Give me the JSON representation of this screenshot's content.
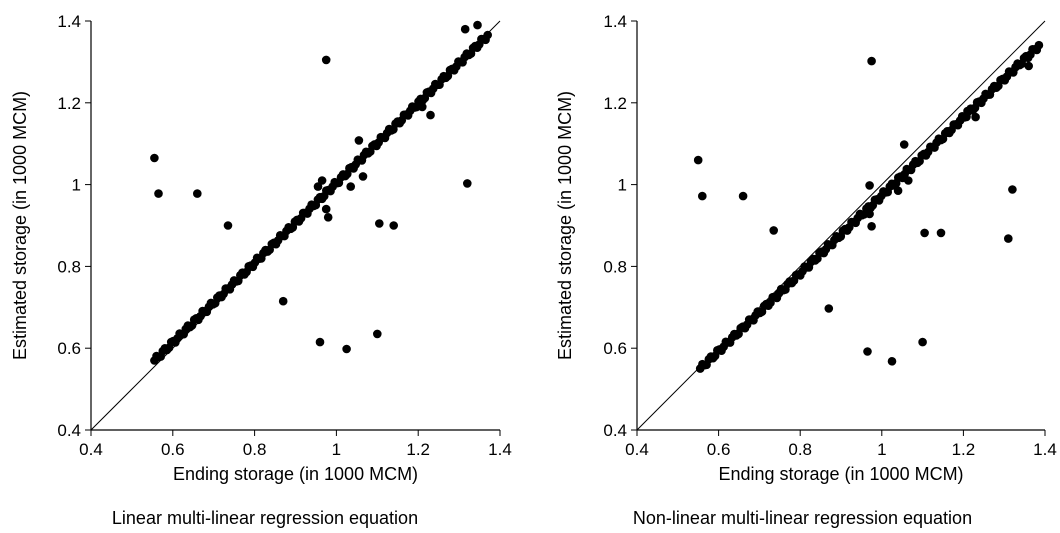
{
  "chart_data": [
    {
      "type": "scatter",
      "caption": "Linear multi-linear regression equation",
      "xlabel": "Ending storage (in 1000 MCM)",
      "ylabel": "Estimated storage (in 1000 MCM)",
      "xlim": [
        0.4,
        1.4
      ],
      "ylim": [
        0.4,
        1.4
      ],
      "xticks": [
        "0.4",
        "0.6",
        "0.8",
        "1",
        "1.2",
        "1.4"
      ],
      "yticks": [
        "0.4",
        "0.6",
        "0.8",
        "1",
        "1.2",
        "1.4"
      ],
      "reference_line": "1:1",
      "color": "#000000",
      "diagonal_points": {
        "x_start": 0.555,
        "x_end": 1.37,
        "y_start": 0.57,
        "y_end": 1.365,
        "count": 160
      },
      "points": [
        {
          "x": 0.555,
          "y": 1.065
        },
        {
          "x": 0.565,
          "y": 0.978
        },
        {
          "x": 0.66,
          "y": 0.978
        },
        {
          "x": 0.735,
          "y": 0.9
        },
        {
          "x": 0.87,
          "y": 0.715
        },
        {
          "x": 0.96,
          "y": 0.615
        },
        {
          "x": 0.975,
          "y": 1.305
        },
        {
          "x": 1.025,
          "y": 0.598
        },
        {
          "x": 1.1,
          "y": 0.635
        },
        {
          "x": 1.105,
          "y": 0.905
        },
        {
          "x": 1.14,
          "y": 0.9
        },
        {
          "x": 1.32,
          "y": 1.003
        },
        {
          "x": 1.315,
          "y": 1.38
        },
        {
          "x": 1.345,
          "y": 1.39
        },
        {
          "x": 1.055,
          "y": 1.108
        },
        {
          "x": 0.965,
          "y": 1.01
        },
        {
          "x": 0.975,
          "y": 0.94
        },
        {
          "x": 0.98,
          "y": 0.92
        },
        {
          "x": 1.035,
          "y": 0.995
        },
        {
          "x": 1.065,
          "y": 1.02
        },
        {
          "x": 1.23,
          "y": 1.17
        },
        {
          "x": 1.21,
          "y": 1.19
        },
        {
          "x": 0.955,
          "y": 0.995
        }
      ]
    },
    {
      "type": "scatter",
      "caption": "Non-linear multi-linear regression equation",
      "xlabel": "Ending storage (in 1000 MCM)",
      "ylabel": "Estimated storage (in 1000 MCM)",
      "xlim": [
        0.4,
        1.4
      ],
      "ylim": [
        0.4,
        1.4
      ],
      "xticks": [
        "0.4",
        "0.6",
        "0.8",
        "1",
        "1.2",
        "1.4"
      ],
      "yticks": [
        "0.4",
        "0.6",
        "0.8",
        "1",
        "1.2",
        "1.4"
      ],
      "reference_line": "1:1",
      "color": "#000000",
      "diagonal_points": {
        "x_start": 0.555,
        "x_end": 1.385,
        "y_start": 0.55,
        "y_end": 1.34,
        "count": 160
      },
      "points": [
        {
          "x": 0.55,
          "y": 1.06
        },
        {
          "x": 0.56,
          "y": 0.972
        },
        {
          "x": 0.66,
          "y": 0.972
        },
        {
          "x": 0.735,
          "y": 0.888
        },
        {
          "x": 0.87,
          "y": 0.697
        },
        {
          "x": 0.965,
          "y": 0.592
        },
        {
          "x": 0.975,
          "y": 1.302
        },
        {
          "x": 1.025,
          "y": 0.568
        },
        {
          "x": 1.1,
          "y": 0.615
        },
        {
          "x": 1.105,
          "y": 0.882
        },
        {
          "x": 1.145,
          "y": 0.882
        },
        {
          "x": 1.31,
          "y": 0.868
        },
        {
          "x": 1.32,
          "y": 0.988
        },
        {
          "x": 1.055,
          "y": 1.098
        },
        {
          "x": 0.97,
          "y": 0.998
        },
        {
          "x": 0.97,
          "y": 0.928
        },
        {
          "x": 0.975,
          "y": 0.898
        },
        {
          "x": 1.065,
          "y": 1.01
        },
        {
          "x": 1.04,
          "y": 0.985
        },
        {
          "x": 1.23,
          "y": 1.165
        },
        {
          "x": 1.36,
          "y": 1.29
        },
        {
          "x": 1.21,
          "y": 1.18
        }
      ]
    }
  ]
}
